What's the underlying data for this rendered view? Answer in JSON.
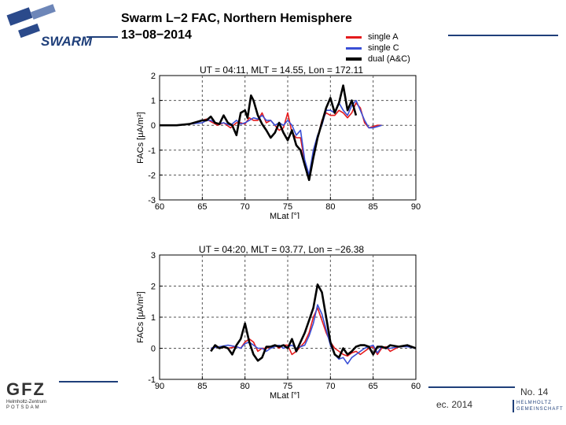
{
  "header": {
    "title": "Swarm L−2 FAC, Northern Hemisphere",
    "date": "13−08−2014",
    "logo_text": "SWARM"
  },
  "legend": [
    {
      "label": "single A",
      "color": "#e41a1c"
    },
    {
      "label": "single C",
      "color": "#3a4fd6"
    },
    {
      "label": "dual (A&C)",
      "color": "#000000"
    }
  ],
  "footer": {
    "date_partial": "ec. 2014",
    "page": "No. 14",
    "gfz_name": "GFZ",
    "gfz_sub_1": "Helmholtz-Zentrum",
    "gfz_sub_2": "POTSDAM",
    "helmholtz_1": "HELMHOLTZ",
    "helmholtz_2": "GEMEINSCHAFT"
  },
  "chart_data": [
    {
      "type": "line",
      "title": "UT = 04:11, MLT = 14.55, Lon = 172.11",
      "xlabel": "MLat [°]",
      "ylabel": "FACs [μA/m²]",
      "xlim": [
        60,
        90
      ],
      "ylim": [
        -3,
        2
      ],
      "xticks": [
        60,
        65,
        70,
        75,
        80,
        85,
        90
      ],
      "yticks": [
        -3,
        -2,
        -1,
        0,
        1,
        2
      ],
      "grid": true,
      "series": [
        {
          "name": "single A",
          "color": "#e41a1c",
          "x": [
            60,
            62,
            63.5,
            65,
            65.5,
            66,
            66.8,
            67.5,
            68.3,
            69,
            69.5,
            70,
            70.5,
            71,
            71.5,
            72,
            72.5,
            73,
            73.5,
            74,
            74.5,
            75,
            75.5,
            76,
            76.5,
            77,
            77.5,
            78,
            78.5,
            79,
            79.5,
            80,
            80.5,
            81,
            81.5,
            82,
            82.5,
            83,
            83.5,
            84,
            84.5,
            85,
            85.5,
            86
          ],
          "y": [
            0,
            0,
            0.05,
            0.2,
            0.25,
            0.15,
            0,
            0.1,
            -0.1,
            0.1,
            0.1,
            0.05,
            0.3,
            0.2,
            0.2,
            0.5,
            0.1,
            0.2,
            0,
            -0.2,
            -0.1,
            0.5,
            -0.3,
            -0.5,
            -0.5,
            -1.5,
            -2.1,
            -1.2,
            -0.5,
            0.2,
            0.5,
            0.4,
            0.4,
            0.6,
            0.5,
            0.3,
            0.5,
            0.9,
            0.7,
            0.1,
            -0.1,
            -0.05,
            0,
            0
          ]
        },
        {
          "name": "single C",
          "color": "#3a4fd6",
          "x": [
            60,
            62,
            63.5,
            65,
            65.5,
            66,
            66.8,
            67.5,
            68.3,
            69,
            69.5,
            70,
            70.5,
            71,
            71.5,
            72,
            72.5,
            73,
            73.5,
            74,
            74.5,
            75,
            75.5,
            76,
            76.5,
            77,
            77.5,
            78,
            78.5,
            79,
            79.5,
            80,
            80.5,
            81,
            81.5,
            82,
            82.5,
            83,
            83.5,
            84,
            84.5,
            85,
            85.5,
            86
          ],
          "y": [
            0,
            0,
            0.05,
            0.1,
            0.2,
            0.2,
            0.05,
            0.1,
            0,
            0.2,
            0.05,
            0.1,
            0.2,
            0.3,
            0.25,
            0.4,
            0.2,
            0.2,
            0,
            0.1,
            0,
            0.2,
            0,
            -0.4,
            -0.2,
            -1.4,
            -2.0,
            -1.0,
            -0.4,
            0,
            0.6,
            0.6,
            0.5,
            0.9,
            0.6,
            0.4,
            0.8,
            1.0,
            0.6,
            0.2,
            -0.1,
            -0.1,
            -0.05,
            0
          ]
        },
        {
          "name": "dual (A&C)",
          "color": "#000000",
          "x": [
            60,
            62,
            63.5,
            65,
            65.5,
            66,
            66.5,
            67,
            67.5,
            68,
            68.5,
            69,
            69.5,
            70,
            70.3,
            70.7,
            71,
            71.5,
            72,
            72.5,
            73,
            73.5,
            74,
            74.5,
            75,
            75.5,
            76,
            76.5,
            77,
            77.5,
            78,
            78.5,
            79,
            79.5,
            80,
            80.5,
            81,
            81.5,
            82,
            82.5,
            83
          ],
          "y": [
            0,
            0,
            0.05,
            0.2,
            0.2,
            0.35,
            0.1,
            0.05,
            0.4,
            0.1,
            0,
            -0.4,
            0.5,
            0.6,
            0.3,
            1.2,
            1.0,
            0.4,
            0.05,
            -0.2,
            -0.5,
            -0.3,
            0.1,
            -0.3,
            -0.6,
            -0.2,
            -0.8,
            -1.0,
            -1.6,
            -2.2,
            -1.3,
            -0.5,
            0.1,
            0.7,
            1.1,
            0.5,
            0.9,
            1.6,
            0.6,
            1.0,
            0.4
          ]
        }
      ]
    },
    {
      "type": "line",
      "title": "UT = 04:20, MLT = 03.77, Lon = −26.38",
      "xlabel": "MLat [°]",
      "ylabel": "FACs [μA/m²]",
      "xlim": [
        90,
        60
      ],
      "ylim": [
        -1,
        3
      ],
      "xticks": [
        90,
        85,
        80,
        75,
        70,
        65,
        60
      ],
      "yticks": [
        -1,
        0,
        1,
        2,
        3
      ],
      "grid": true,
      "series": [
        {
          "name": "single A",
          "color": "#e41a1c",
          "x": [
            84,
            83,
            82,
            81,
            80.5,
            80,
            79.5,
            79,
            78.5,
            78,
            77.5,
            77,
            76.5,
            76,
            75.5,
            75,
            74.5,
            74,
            73.5,
            73,
            72.5,
            72,
            71.5,
            71,
            70.5,
            70,
            69.5,
            69,
            68.5,
            68,
            67.5,
            67,
            66.5,
            66,
            65.5,
            65,
            64.5,
            64,
            63.5,
            63,
            62,
            61,
            60
          ],
          "y": [
            0,
            0.05,
            0,
            0.05,
            0,
            0.2,
            0.3,
            0.2,
            -0.1,
            0,
            0,
            0.05,
            0.1,
            0,
            0.1,
            0.1,
            -0.2,
            -0.1,
            0.05,
            0.2,
            0.5,
            1.0,
            1.3,
            0.9,
            0.5,
            0.2,
            0,
            -0.1,
            -0.2,
            -0.25,
            -0.15,
            -0.1,
            -0.2,
            -0.1,
            0,
            0.05,
            -0.2,
            0,
            0.05,
            -0.1,
            0.05,
            0.1,
            0
          ]
        },
        {
          "name": "single C",
          "color": "#3a4fd6",
          "x": [
            84,
            83,
            82,
            81,
            80.5,
            80,
            79.5,
            79,
            78.5,
            78,
            77.5,
            77,
            76.5,
            76,
            75.5,
            75,
            74.5,
            74,
            73.5,
            73,
            72.5,
            72,
            71.5,
            71,
            70.5,
            70,
            69.5,
            69,
            68.5,
            68,
            67.5,
            67,
            66.5,
            66,
            65.5,
            65,
            64.5,
            64,
            63.5,
            63,
            62,
            61,
            60
          ],
          "y": [
            0,
            0.05,
            0.1,
            0.05,
            0,
            0.15,
            0.2,
            0.1,
            0,
            0,
            -0.1,
            0,
            0.05,
            0.1,
            0,
            0.05,
            0.1,
            0,
            0.05,
            0.1,
            0.4,
            0.8,
            1.4,
            1.1,
            0.6,
            0.1,
            -0.2,
            -0.35,
            -0.3,
            -0.5,
            -0.3,
            -0.2,
            -0.1,
            0,
            0.05,
            0.1,
            -0.15,
            0.05,
            0,
            0,
            0.05,
            0.05,
            0
          ]
        },
        {
          "name": "dual (A&C)",
          "color": "#000000",
          "x": [
            84,
            83.5,
            83,
            82.5,
            82,
            81.5,
            81,
            80.5,
            80,
            79.5,
            79,
            78.5,
            78,
            77.5,
            77,
            76.5,
            76,
            75.5,
            75,
            74.5,
            74,
            73.5,
            73,
            72.5,
            72,
            71.5,
            71,
            70.5,
            70,
            69.5,
            69,
            68.5,
            68,
            67.5,
            67,
            66.5,
            66,
            65.5,
            65,
            64.5,
            64,
            63.5,
            63,
            62,
            61,
            60
          ],
          "y": [
            -0.1,
            0.1,
            0,
            0.05,
            0,
            -0.2,
            0.1,
            0.3,
            0.8,
            0.2,
            -0.2,
            -0.4,
            -0.3,
            0.05,
            0.05,
            0.1,
            0.05,
            0.1,
            0,
            0.3,
            -0.1,
            0.2,
            0.5,
            0.9,
            1.3,
            2.05,
            1.8,
            1.0,
            0.2,
            -0.2,
            -0.3,
            0,
            -0.2,
            -0.1,
            0.05,
            0.1,
            0.1,
            0.05,
            -0.2,
            0.05,
            0.05,
            0,
            0.1,
            0.05,
            0.1,
            0
          ]
        }
      ]
    }
  ]
}
